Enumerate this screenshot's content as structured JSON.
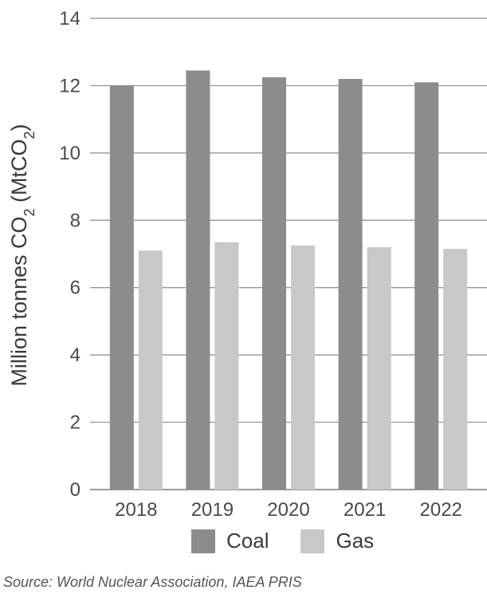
{
  "chart_data": {
    "type": "bar",
    "categories": [
      "2018",
      "2019",
      "2020",
      "2021",
      "2022"
    ],
    "series": [
      {
        "name": "Coal",
        "values": [
          12.0,
          12.45,
          12.25,
          12.2,
          12.1
        ],
        "color": "#8c8c8e"
      },
      {
        "name": "Gas",
        "values": [
          7.1,
          7.35,
          7.25,
          7.2,
          7.15
        ],
        "color": "#c8c8c8"
      }
    ],
    "ylabel_main": "Million tonnes CO",
    "ylabel_sub1": "2",
    "ylabel_mid": " (MtCO",
    "ylabel_sub2": "2",
    "ylabel_end": ")",
    "ylim": [
      0,
      14
    ],
    "yticks": [
      0,
      2,
      4,
      6,
      8,
      10,
      12,
      14
    ],
    "grid": true,
    "legend": "bottom"
  },
  "source": "Source: World Nuclear Association, IAEA PRIS"
}
